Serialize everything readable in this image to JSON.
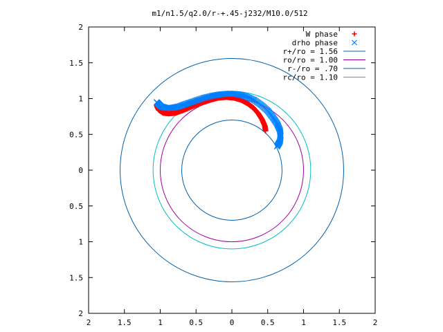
{
  "chart_data": {
    "type": "scatter",
    "title": "m1/n1.5/q2.0/r-+.45-j232/M10.0/512",
    "xlabel": "",
    "ylabel": "",
    "xlim": [
      -2,
      2
    ],
    "ylim": [
      -2,
      2
    ],
    "xtick_labels": [
      "2",
      "1.5",
      "1",
      "0.5",
      "0",
      "0.5",
      "1",
      "1.5",
      "2"
    ],
    "ytick_labels": [
      "2",
      "1.5",
      "1",
      "0.5",
      "0",
      "0.5",
      "1",
      "1.5",
      "2"
    ],
    "xticks": [
      -2,
      -1.5,
      -1,
      -0.5,
      0,
      0.5,
      1,
      1.5,
      2
    ],
    "yticks": [
      2,
      1.5,
      1,
      0.5,
      0,
      -0.5,
      -1,
      -1.5,
      -2
    ],
    "grid": false,
    "legend_position": "top-right",
    "series": [
      {
        "name": "W phase",
        "marker": "plus",
        "color": "#ff0000",
        "points": [
          [
            0.47,
            0.55
          ],
          [
            0.46,
            0.62
          ],
          [
            0.42,
            0.71
          ],
          [
            0.37,
            0.79
          ],
          [
            0.3,
            0.87
          ],
          [
            0.22,
            0.93
          ],
          [
            0.13,
            0.98
          ],
          [
            0.03,
            1.01
          ],
          [
            -0.08,
            1.02
          ],
          [
            -0.19,
            1.01
          ],
          [
            -0.3,
            0.98
          ],
          [
            -0.42,
            0.94
          ],
          [
            -0.55,
            0.89
          ],
          [
            -0.67,
            0.84
          ],
          [
            -0.78,
            0.8
          ],
          [
            -0.88,
            0.79
          ],
          [
            -0.96,
            0.8
          ],
          [
            -1.02,
            0.84
          ],
          [
            -1.04,
            0.88
          ],
          [
            -1.05,
            0.91
          ]
        ]
      },
      {
        "name": "drho phase",
        "marker": "cross",
        "color": "#0080ff",
        "points": [
          [
            0.63,
            0.33
          ],
          [
            0.67,
            0.4
          ],
          [
            0.68,
            0.48
          ],
          [
            0.67,
            0.56
          ],
          [
            0.63,
            0.65
          ],
          [
            0.57,
            0.74
          ],
          [
            0.5,
            0.83
          ],
          [
            0.41,
            0.91
          ],
          [
            0.31,
            0.98
          ],
          [
            0.2,
            1.03
          ],
          [
            0.09,
            1.06
          ],
          [
            -0.03,
            1.07
          ],
          [
            -0.15,
            1.06
          ],
          [
            -0.27,
            1.04
          ],
          [
            -0.39,
            1.01
          ],
          [
            -0.51,
            0.97
          ],
          [
            -0.63,
            0.93
          ],
          [
            -0.74,
            0.89
          ],
          [
            -0.84,
            0.87
          ],
          [
            -0.92,
            0.87
          ],
          [
            -0.99,
            0.89
          ],
          [
            -1.03,
            0.93
          ],
          [
            -1.05,
            0.95
          ]
        ]
      },
      {
        "name": "r+/ro = 1.56",
        "type": "circle",
        "radius": 1.56,
        "color": "#0060ad"
      },
      {
        "name": "ro/ro = 1.00",
        "type": "circle",
        "radius": 1.0,
        "color": "#a000a0"
      },
      {
        "name": "r-/ro = .70",
        "type": "circle",
        "radius": 0.7,
        "color": "#0060ad"
      },
      {
        "name": "rc/ro = 1.10",
        "type": "circle",
        "radius": 1.1,
        "color": "#00c0c0"
      }
    ]
  }
}
